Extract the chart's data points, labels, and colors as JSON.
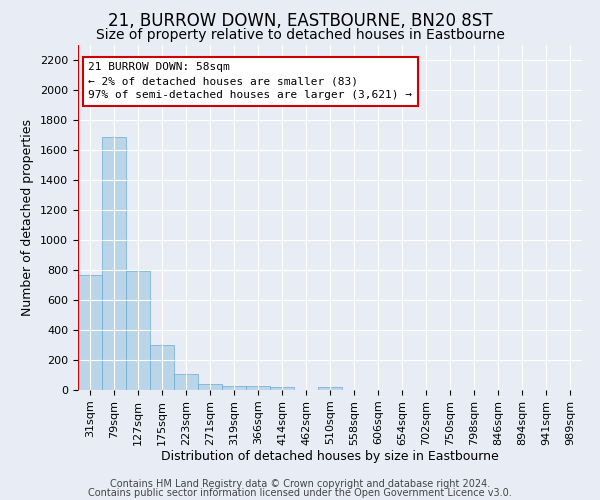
{
  "title": "21, BURROW DOWN, EASTBOURNE, BN20 8ST",
  "subtitle": "Size of property relative to detached houses in Eastbourne",
  "xlabel": "Distribution of detached houses by size in Eastbourne",
  "ylabel": "Number of detached properties",
  "categories": [
    "31sqm",
    "79sqm",
    "127sqm",
    "175sqm",
    "223sqm",
    "271sqm",
    "319sqm",
    "366sqm",
    "414sqm",
    "462sqm",
    "510sqm",
    "558sqm",
    "606sqm",
    "654sqm",
    "702sqm",
    "750sqm",
    "798sqm",
    "846sqm",
    "894sqm",
    "941sqm",
    "989sqm"
  ],
  "values": [
    770,
    1690,
    795,
    300,
    110,
    42,
    30,
    25,
    20,
    0,
    20,
    0,
    0,
    0,
    0,
    0,
    0,
    0,
    0,
    0,
    0
  ],
  "bar_color": "#bad4e8",
  "bar_edgecolor": "#6aaad4",
  "marker_color": "#cc0000",
  "annotation_text": "21 BURROW DOWN: 58sqm\n← 2% of detached houses are smaller (83)\n97% of semi-detached houses are larger (3,621) →",
  "annotation_box_facecolor": "#ffffff",
  "annotation_box_edgecolor": "#cc0000",
  "ylim": [
    0,
    2300
  ],
  "yticks": [
    0,
    200,
    400,
    600,
    800,
    1000,
    1200,
    1400,
    1600,
    1800,
    2000,
    2200
  ],
  "footer_line1": "Contains HM Land Registry data © Crown copyright and database right 2024.",
  "footer_line2": "Contains public sector information licensed under the Open Government Licence v3.0.",
  "background_color": "#e8edf5",
  "plot_bg_color": "#e8edf5",
  "grid_color": "#ffffff",
  "title_fontsize": 12,
  "subtitle_fontsize": 10,
  "ylabel_fontsize": 9,
  "xlabel_fontsize": 9,
  "tick_fontsize": 8,
  "annotation_fontsize": 8,
  "footer_fontsize": 7
}
